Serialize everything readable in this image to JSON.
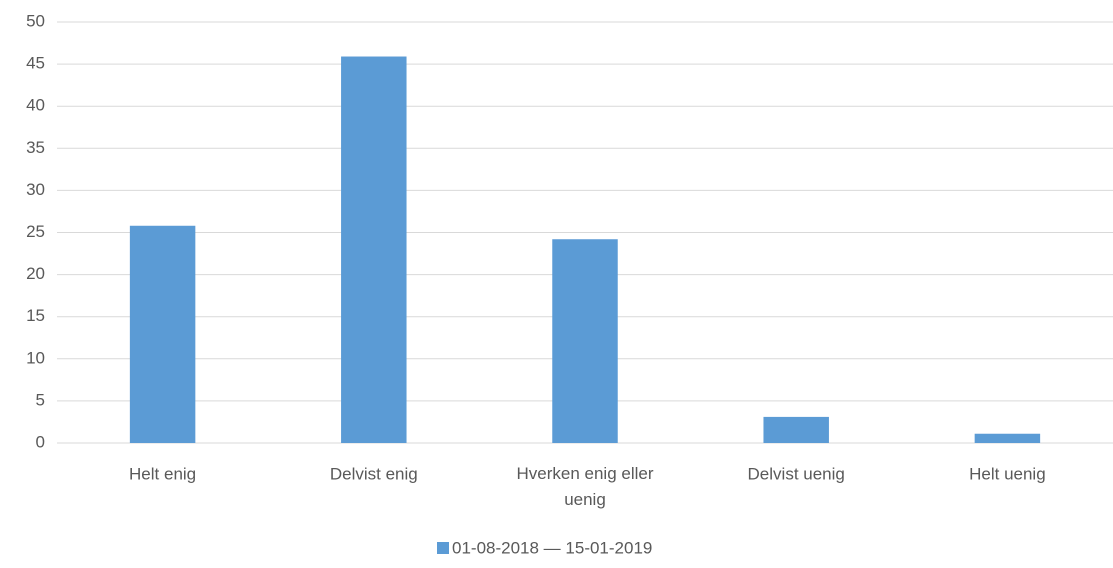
{
  "chart_data": {
    "type": "bar",
    "categories": [
      "Helt enig",
      "Delvist enig",
      "Hverken enig eller uenig",
      "Delvist uenig",
      "Helt uenig"
    ],
    "series": [
      {
        "name": "01-08-2018 — 15-01-2019",
        "color": "#5b9bd5",
        "values": [
          25.8,
          45.9,
          24.2,
          3.1,
          1.1
        ]
      }
    ],
    "ylim": [
      0,
      50
    ],
    "yticks": [
      0,
      5,
      10,
      15,
      20,
      25,
      30,
      35,
      40,
      45,
      50
    ],
    "grid": true,
    "legend": "bottom"
  }
}
